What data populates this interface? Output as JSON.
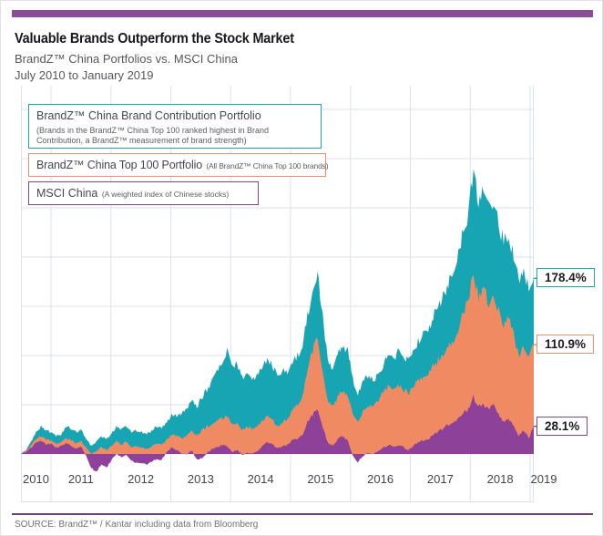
{
  "header": {
    "title": "Valuable Brands Outperform the Stock Market",
    "subtitle": "BrandZ™ China Portfolios vs. MSCI China",
    "period": "July 2010 to January 2019"
  },
  "legend": [
    {
      "name": "BrandZ™ China Brand Contribution Portfolio",
      "description": "(Brands in the BrandZ™ China Top 100 ranked highest in Brand Contribution, a BrandZ™ measurement of brand strength)",
      "color": "#1ba6b4"
    },
    {
      "name": "BrandZ™ China Top 100 Portfolio",
      "description": "(All BrandZ™ China Top 100 brands)",
      "color": "#f0906a"
    },
    {
      "name": "MSCI China",
      "description": "(A weighted index of Chinese stocks)",
      "color": "#82468f"
    }
  ],
  "callouts": [
    {
      "label": "178.4%",
      "value": 178.4,
      "series": "BrandZ™ China Brand Contribution Portfolio",
      "color": "#1ba6b4"
    },
    {
      "label": "110.9%",
      "value": 110.9,
      "series": "BrandZ™ China Top 100 Portfolio",
      "color": "#f0906a"
    },
    {
      "label": "28.1%",
      "value": 28.1,
      "series": "MSCI China",
      "color": "#82468f"
    }
  ],
  "source": "SOURCE: BrandZ™ / Kantar including data from Bloomberg",
  "chart_data": {
    "type": "area",
    "title": "BrandZ™ China Portfolios vs. MSCI China, July 2010 to January 2019",
    "x_start": "2010-07",
    "x_end": "2019-01",
    "sampling": "monthly",
    "x_tick_labels": [
      "2010",
      "2011",
      "2012",
      "2013",
      "2014",
      "2015",
      "2016",
      "2017",
      "2018",
      "2019"
    ],
    "y_unit": "percent cumulative return",
    "y_baseline": 0,
    "y_gridline_step": 50,
    "y_range_visible": [
      -25,
      375
    ],
    "grid": true,
    "legend_position": "top-left-inside",
    "grid_color": "#dce2f0",
    "axis_text_color": "#43464d",
    "series": [
      {
        "name": "BrandZ™ China Brand Contribution Portfolio",
        "color": "#17a5b4",
        "end_value_pct": 178.4,
        "values": [
          0,
          4,
          12,
          22,
          28,
          24,
          22,
          18,
          20,
          28,
          26,
          22,
          25,
          15,
          8,
          12,
          18,
          15,
          20,
          28,
          25,
          28,
          22,
          24,
          22,
          20,
          24,
          28,
          26,
          32,
          40,
          38,
          42,
          45,
          55,
          48,
          58,
          65,
          75,
          85,
          95,
          105,
          88,
          92,
          78,
          82,
          75,
          80,
          88,
          95,
          90,
          80,
          85,
          82,
          95,
          100,
          110,
          140,
          165,
          185,
          140,
          95,
          85,
          100,
          110,
          105,
          75,
          60,
          75,
          80,
          75,
          80,
          90,
          100,
          95,
          105,
          100,
          95,
          105,
          115,
          120,
          125,
          140,
          150,
          160,
          175,
          185,
          200,
          230,
          245,
          290,
          255,
          270,
          250,
          260,
          235,
          215,
          225,
          200,
          175,
          185,
          170,
          178.4
        ]
      },
      {
        "name": "BrandZ™ China Top 100 Portfolio",
        "color": "#f08a62",
        "end_value_pct": 110.9,
        "values": [
          0,
          3,
          8,
          15,
          18,
          15,
          14,
          10,
          12,
          16,
          14,
          11,
          13,
          6,
          0,
          3,
          7,
          4,
          8,
          13,
          10,
          12,
          7,
          8,
          6,
          5,
          8,
          11,
          9,
          14,
          20,
          18,
          16,
          18,
          24,
          18,
          24,
          28,
          30,
          33,
          36,
          38,
          30,
          32,
          25,
          28,
          25,
          28,
          33,
          38,
          35,
          28,
          32,
          35,
          45,
          50,
          60,
          85,
          105,
          118,
          85,
          55,
          48,
          58,
          65,
          60,
          40,
          32,
          42,
          48,
          50,
          55,
          62,
          68,
          65,
          70,
          66,
          62,
          68,
          75,
          78,
          80,
          88,
          95,
          100,
          110,
          115,
          125,
          145,
          155,
          185,
          160,
          170,
          155,
          165,
          145,
          130,
          138,
          120,
          100,
          110,
          98,
          110.9
        ]
      },
      {
        "name": "MSCI China",
        "color": "#8d4198",
        "end_value_pct": 28.1,
        "values": [
          0,
          2,
          6,
          12,
          13,
          10,
          10,
          6,
          8,
          11,
          8,
          5,
          7,
          -2,
          -14,
          -19,
          -10,
          -14,
          -6,
          0,
          -3,
          -1,
          -7,
          -9,
          -10,
          -11,
          -8,
          -5,
          -6,
          2,
          7,
          4,
          0,
          0,
          3,
          -6,
          -4,
          1,
          5,
          7,
          9,
          8,
          2,
          4,
          -1,
          1,
          0,
          3,
          8,
          12,
          10,
          6,
          8,
          9,
          14,
          16,
          20,
          32,
          40,
          45,
          28,
          12,
          8,
          15,
          18,
          14,
          -2,
          -8,
          -2,
          1,
          0,
          2,
          6,
          9,
          8,
          9,
          7,
          4,
          8,
          12,
          14,
          15,
          19,
          23,
          26,
          30,
          32,
          36,
          42,
          45,
          58,
          48,
          50,
          46,
          50,
          40,
          33,
          36,
          28,
          18,
          24,
          16,
          28.1
        ]
      }
    ]
  }
}
